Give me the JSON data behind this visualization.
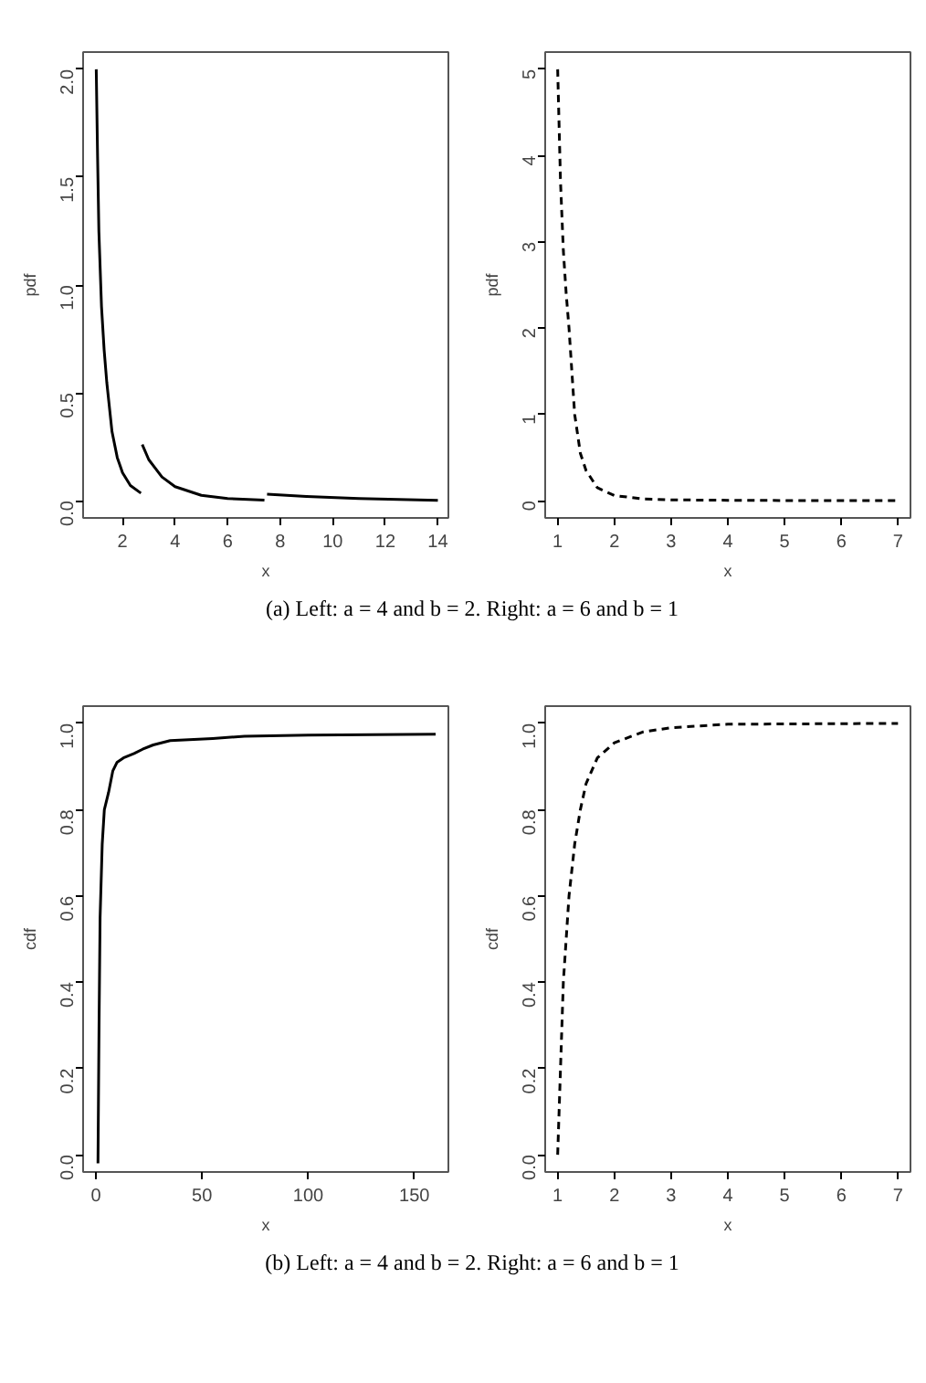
{
  "chart_data": [
    {
      "type": "line",
      "xlabel": "x",
      "ylabel": "pdf",
      "xlim": [
        0.5,
        14.4
      ],
      "ylim": [
        -0.08,
        2.08
      ],
      "line_style": "solid",
      "xticks": [
        2,
        4,
        6,
        8,
        10,
        12,
        14
      ],
      "yticks": [
        {
          "value": 0,
          "label": "0.0"
        },
        {
          "value": 0.5,
          "label": "0.5"
        },
        {
          "value": 1,
          "label": "1.0"
        },
        {
          "value": 1.5,
          "label": "1.5"
        },
        {
          "value": 2,
          "label": "2.0"
        }
      ],
      "annotations": [
        "(a) Left: a = 4 and b = 2. Right: a = 6 and b = 1"
      ],
      "series": [
        {
          "color": "#000000",
          "x": [
            1.0,
            1.05,
            1.1,
            1.2,
            1.3,
            1.4,
            1.6,
            1.8,
            2.0,
            2.3,
            2.7
          ],
          "values": [
            2.0,
            1.6,
            1.25,
            0.9,
            0.7,
            0.55,
            0.32,
            0.2,
            0.13,
            0.07,
            0.035
          ]
        },
        {
          "color": "#000000",
          "x": [
            2.75,
            3.0,
            3.5,
            4.0,
            5.0,
            6.0,
            7.4
          ],
          "values": [
            0.26,
            0.19,
            0.11,
            0.065,
            0.025,
            0.01,
            0.003
          ]
        },
        {
          "color": "#000000",
          "x": [
            7.5,
            9.0,
            11.0,
            14.0
          ],
          "values": [
            0.03,
            0.02,
            0.01,
            0.002
          ]
        }
      ]
    },
    {
      "type": "line",
      "xlabel": "x",
      "ylabel": "pdf",
      "xlim": [
        0.78,
        7.22
      ],
      "ylim": [
        -0.2,
        5.2
      ],
      "line_style": "dashed",
      "xticks": [
        1,
        2,
        3,
        4,
        5,
        6,
        7
      ],
      "yticks": [
        0,
        1,
        2,
        3,
        4,
        5
      ],
      "series": [
        {
          "color": "#000000",
          "x": [
            1.0,
            1.05,
            1.1,
            1.15,
            1.2,
            1.3,
            1.4,
            1.5,
            1.7,
            2.0,
            2.5,
            3.0,
            4.0,
            5.0,
            7.0
          ],
          "values": [
            5.0,
            3.7,
            2.9,
            2.4,
            2.0,
            1.0,
            0.55,
            0.35,
            0.15,
            0.06,
            0.02,
            0.01,
            0.005,
            0.002,
            0.001
          ]
        }
      ]
    },
    {
      "type": "line",
      "xlabel": "x",
      "ylabel": "cdf",
      "xlim": [
        -6,
        166
      ],
      "ylim": [
        -0.04,
        1.04
      ],
      "line_style": "solid",
      "xticks": [
        0,
        50,
        100,
        150
      ],
      "yticks": [
        {
          "value": 0,
          "label": "0.0"
        },
        {
          "value": 0.2,
          "label": "0.2"
        },
        {
          "value": 0.4,
          "label": "0.4"
        },
        {
          "value": 0.6,
          "label": "0.6"
        },
        {
          "value": 0.8,
          "label": "0.8"
        },
        {
          "value": 1,
          "label": "1.0"
        }
      ],
      "annotations": [
        "(b) Left: a = 4 and b = 2. Right: a = 6 and b = 1"
      ],
      "series": [
        {
          "color": "#000000",
          "x": [
            1,
            1.5,
            2,
            3,
            4,
            6,
            8,
            10,
            13,
            18,
            22,
            27,
            35,
            55,
            70,
            100,
            160
          ],
          "values": [
            -0.02,
            0.3,
            0.55,
            0.72,
            0.8,
            0.84,
            0.89,
            0.91,
            0.92,
            0.93,
            0.94,
            0.95,
            0.96,
            0.965,
            0.97,
            0.973,
            0.975
          ]
        }
      ]
    },
    {
      "type": "line",
      "xlabel": "x",
      "ylabel": "cdf",
      "xlim": [
        0.78,
        7.22
      ],
      "ylim": [
        -0.04,
        1.04
      ],
      "line_style": "dashed",
      "xticks": [
        1,
        2,
        3,
        4,
        5,
        6,
        7
      ],
      "yticks": [
        {
          "value": 0,
          "label": "0.0"
        },
        {
          "value": 0.2,
          "label": "0.2"
        },
        {
          "value": 0.4,
          "label": "0.4"
        },
        {
          "value": 0.6,
          "label": "0.6"
        },
        {
          "value": 0.8,
          "label": "0.8"
        },
        {
          "value": 1,
          "label": "1.0"
        }
      ],
      "series": [
        {
          "color": "#000000",
          "x": [
            1.0,
            1.1,
            1.2,
            1.3,
            1.4,
            1.5,
            1.7,
            2.0,
            2.5,
            3.0,
            4.0,
            7.0
          ],
          "values": [
            0.0,
            0.4,
            0.6,
            0.72,
            0.8,
            0.86,
            0.92,
            0.955,
            0.98,
            0.99,
            0.998,
            1.0
          ]
        }
      ]
    }
  ]
}
